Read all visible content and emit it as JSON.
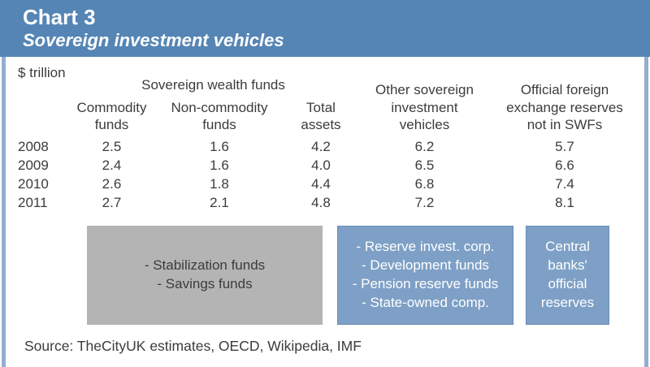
{
  "colors": {
    "header_blue": "#5585B5",
    "frame_blue": "#93AFD0",
    "box_blue": "#7EA0C6",
    "box_blue_border": "#688DB6",
    "box_gray": "#B4B4B4",
    "text_dark": "#3C3C3C",
    "text_white": "#FFFFFF"
  },
  "header": {
    "title": "Chart 3",
    "subtitle": "Sovereign investment vehicles"
  },
  "table": {
    "unit_label": "$ trillion",
    "group_header": "Sovereign wealth funds",
    "columns": [
      "Commodity\nfunds",
      "Non-commodity\nfunds",
      "Total\nassets",
      "Other sovereign\ninvestment\nvehicles",
      "Official foreign\nexchange reserves\nnot in SWFs"
    ],
    "rows": [
      {
        "year": "2008",
        "values": [
          "2.5",
          "1.6",
          "4.2",
          "6.2",
          "5.7"
        ]
      },
      {
        "year": "2009",
        "values": [
          "2.4",
          "1.6",
          "4.0",
          "6.5",
          "6.6"
        ]
      },
      {
        "year": "2010",
        "values": [
          "2.6",
          "1.8",
          "4.4",
          "6.8",
          "7.4"
        ]
      },
      {
        "year": "2011",
        "values": [
          "2.7",
          "2.1",
          "4.8",
          "7.2",
          "8.1"
        ]
      }
    ]
  },
  "annotations": {
    "swf_types": "- Stabilization funds\n- Savings funds",
    "other_siv_types": "- Reserve invest. corp.\n- Development funds\n- Pension reserve funds\n- State-owned comp.",
    "reserves_note": "Central\nbanks'\nofficial\nreserves"
  },
  "source": "Source: TheCityUK estimates, OECD, Wikipedia, IMF",
  "chart_data": {
    "type": "table",
    "title": "Chart 3",
    "subtitle": "Sovereign investment vehicles",
    "unit": "$ trillion",
    "group_header": "Sovereign wealth funds",
    "columns": [
      "Commodity funds",
      "Non-commodity funds",
      "Total assets",
      "Other sovereign investment vehicles",
      "Official foreign exchange reserves not in SWFs"
    ],
    "years": [
      "2008",
      "2009",
      "2010",
      "2011"
    ],
    "series": [
      {
        "name": "Commodity funds",
        "values": [
          2.5,
          2.4,
          2.6,
          2.7
        ]
      },
      {
        "name": "Non-commodity funds",
        "values": [
          1.6,
          1.6,
          1.8,
          2.1
        ]
      },
      {
        "name": "Total assets",
        "values": [
          4.2,
          4.0,
          4.4,
          4.8
        ]
      },
      {
        "name": "Other sovereign investment vehicles",
        "values": [
          6.2,
          6.5,
          6.8,
          7.2
        ]
      },
      {
        "name": "Official foreign exchange reserves not in SWFs",
        "values": [
          5.7,
          6.6,
          7.4,
          8.1
        ]
      }
    ],
    "annotations": [
      "Sovereign wealth funds include: - Stabilization funds - Savings funds",
      "Other sovereign investment vehicles include: - Reserve invest. corp. - Development funds - Pension reserve funds - State-owned comp.",
      "Official foreign exchange reserves not in SWFs: Central banks' official reserves"
    ],
    "source": "Source: TheCityUK estimates, OECD, Wikipedia, IMF"
  }
}
